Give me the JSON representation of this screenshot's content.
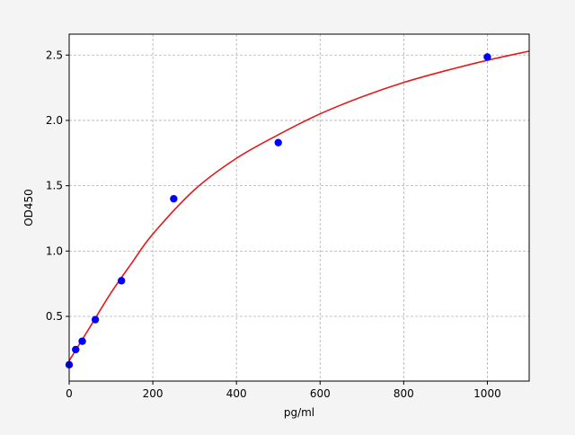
{
  "chart_data": {
    "type": "scatter",
    "title": "",
    "xlabel": "pg/ml",
    "ylabel": "OD450",
    "xlim": [
      0,
      1100
    ],
    "ylim": [
      0.005,
      2.66
    ],
    "xticks": [
      0,
      200,
      400,
      600,
      800,
      1000
    ],
    "xtick_labels": [
      "0",
      "200",
      "400",
      "600",
      "800",
      "1000"
    ],
    "yticks": [
      0.5,
      1.0,
      1.5,
      2.0,
      2.5
    ],
    "ytick_labels": [
      "0.5",
      "1.0",
      "1.5",
      "2.0",
      "2.5"
    ],
    "grid": true,
    "points": {
      "color": "#0000ff",
      "x": [
        0,
        15.6,
        31.25,
        62.5,
        125,
        250,
        500,
        1000
      ],
      "y": [
        0.13,
        0.246,
        0.31,
        0.475,
        0.773,
        1.4,
        1.83,
        2.485
      ]
    },
    "fit_curve": {
      "color": "#e31a1c",
      "x": [
        0,
        50,
        100,
        150,
        200,
        300,
        400,
        500,
        600,
        700,
        800,
        900,
        1000,
        1100
      ],
      "y": [
        0.16,
        0.42,
        0.68,
        0.91,
        1.13,
        1.47,
        1.71,
        1.89,
        2.05,
        2.18,
        2.29,
        2.38,
        2.46,
        2.53
      ]
    }
  }
}
